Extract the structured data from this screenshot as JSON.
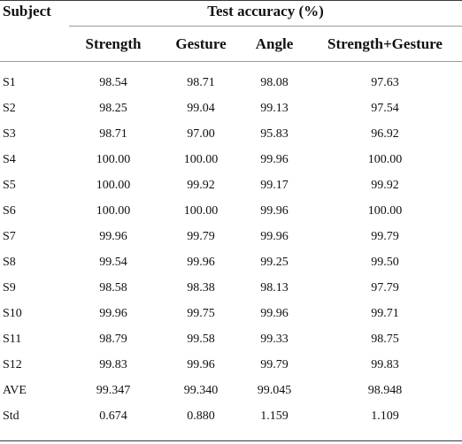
{
  "table": {
    "subject_header": "Subject",
    "group_header": "Test accuracy (%)",
    "columns": [
      "Strength",
      "Gesture",
      "Angle",
      "Strength+Gesture"
    ],
    "rows": [
      {
        "subject": "S1",
        "values": [
          "98.54",
          "98.71",
          "98.08",
          "97.63"
        ]
      },
      {
        "subject": "S2",
        "values": [
          "98.25",
          "99.04",
          "99.13",
          "97.54"
        ]
      },
      {
        "subject": "S3",
        "values": [
          "98.71",
          "97.00",
          "95.83",
          "96.92"
        ]
      },
      {
        "subject": "S4",
        "values": [
          "100.00",
          "100.00",
          "99.96",
          "100.00"
        ]
      },
      {
        "subject": "S5",
        "values": [
          "100.00",
          "99.92",
          "99.17",
          "99.92"
        ]
      },
      {
        "subject": "S6",
        "values": [
          "100.00",
          "100.00",
          "99.96",
          "100.00"
        ]
      },
      {
        "subject": "S7",
        "values": [
          "99.96",
          "99.79",
          "99.96",
          "99.79"
        ]
      },
      {
        "subject": "S8",
        "values": [
          "99.54",
          "99.96",
          "99.25",
          "99.50"
        ]
      },
      {
        "subject": "S9",
        "values": [
          "98.58",
          "98.38",
          "98.13",
          "97.79"
        ]
      },
      {
        "subject": "S10",
        "values": [
          "99.96",
          "99.75",
          "99.96",
          "99.71"
        ]
      },
      {
        "subject": "S11",
        "values": [
          "98.79",
          "99.58",
          "99.33",
          "98.75"
        ]
      },
      {
        "subject": "S12",
        "values": [
          "99.83",
          "99.96",
          "99.79",
          "99.83"
        ]
      },
      {
        "subject": "AVE",
        "values": [
          "99.347",
          "99.340",
          "99.045",
          "98.948"
        ]
      },
      {
        "subject": "Std",
        "values": [
          "0.674",
          "0.880",
          "1.159",
          "1.109"
        ]
      }
    ]
  }
}
